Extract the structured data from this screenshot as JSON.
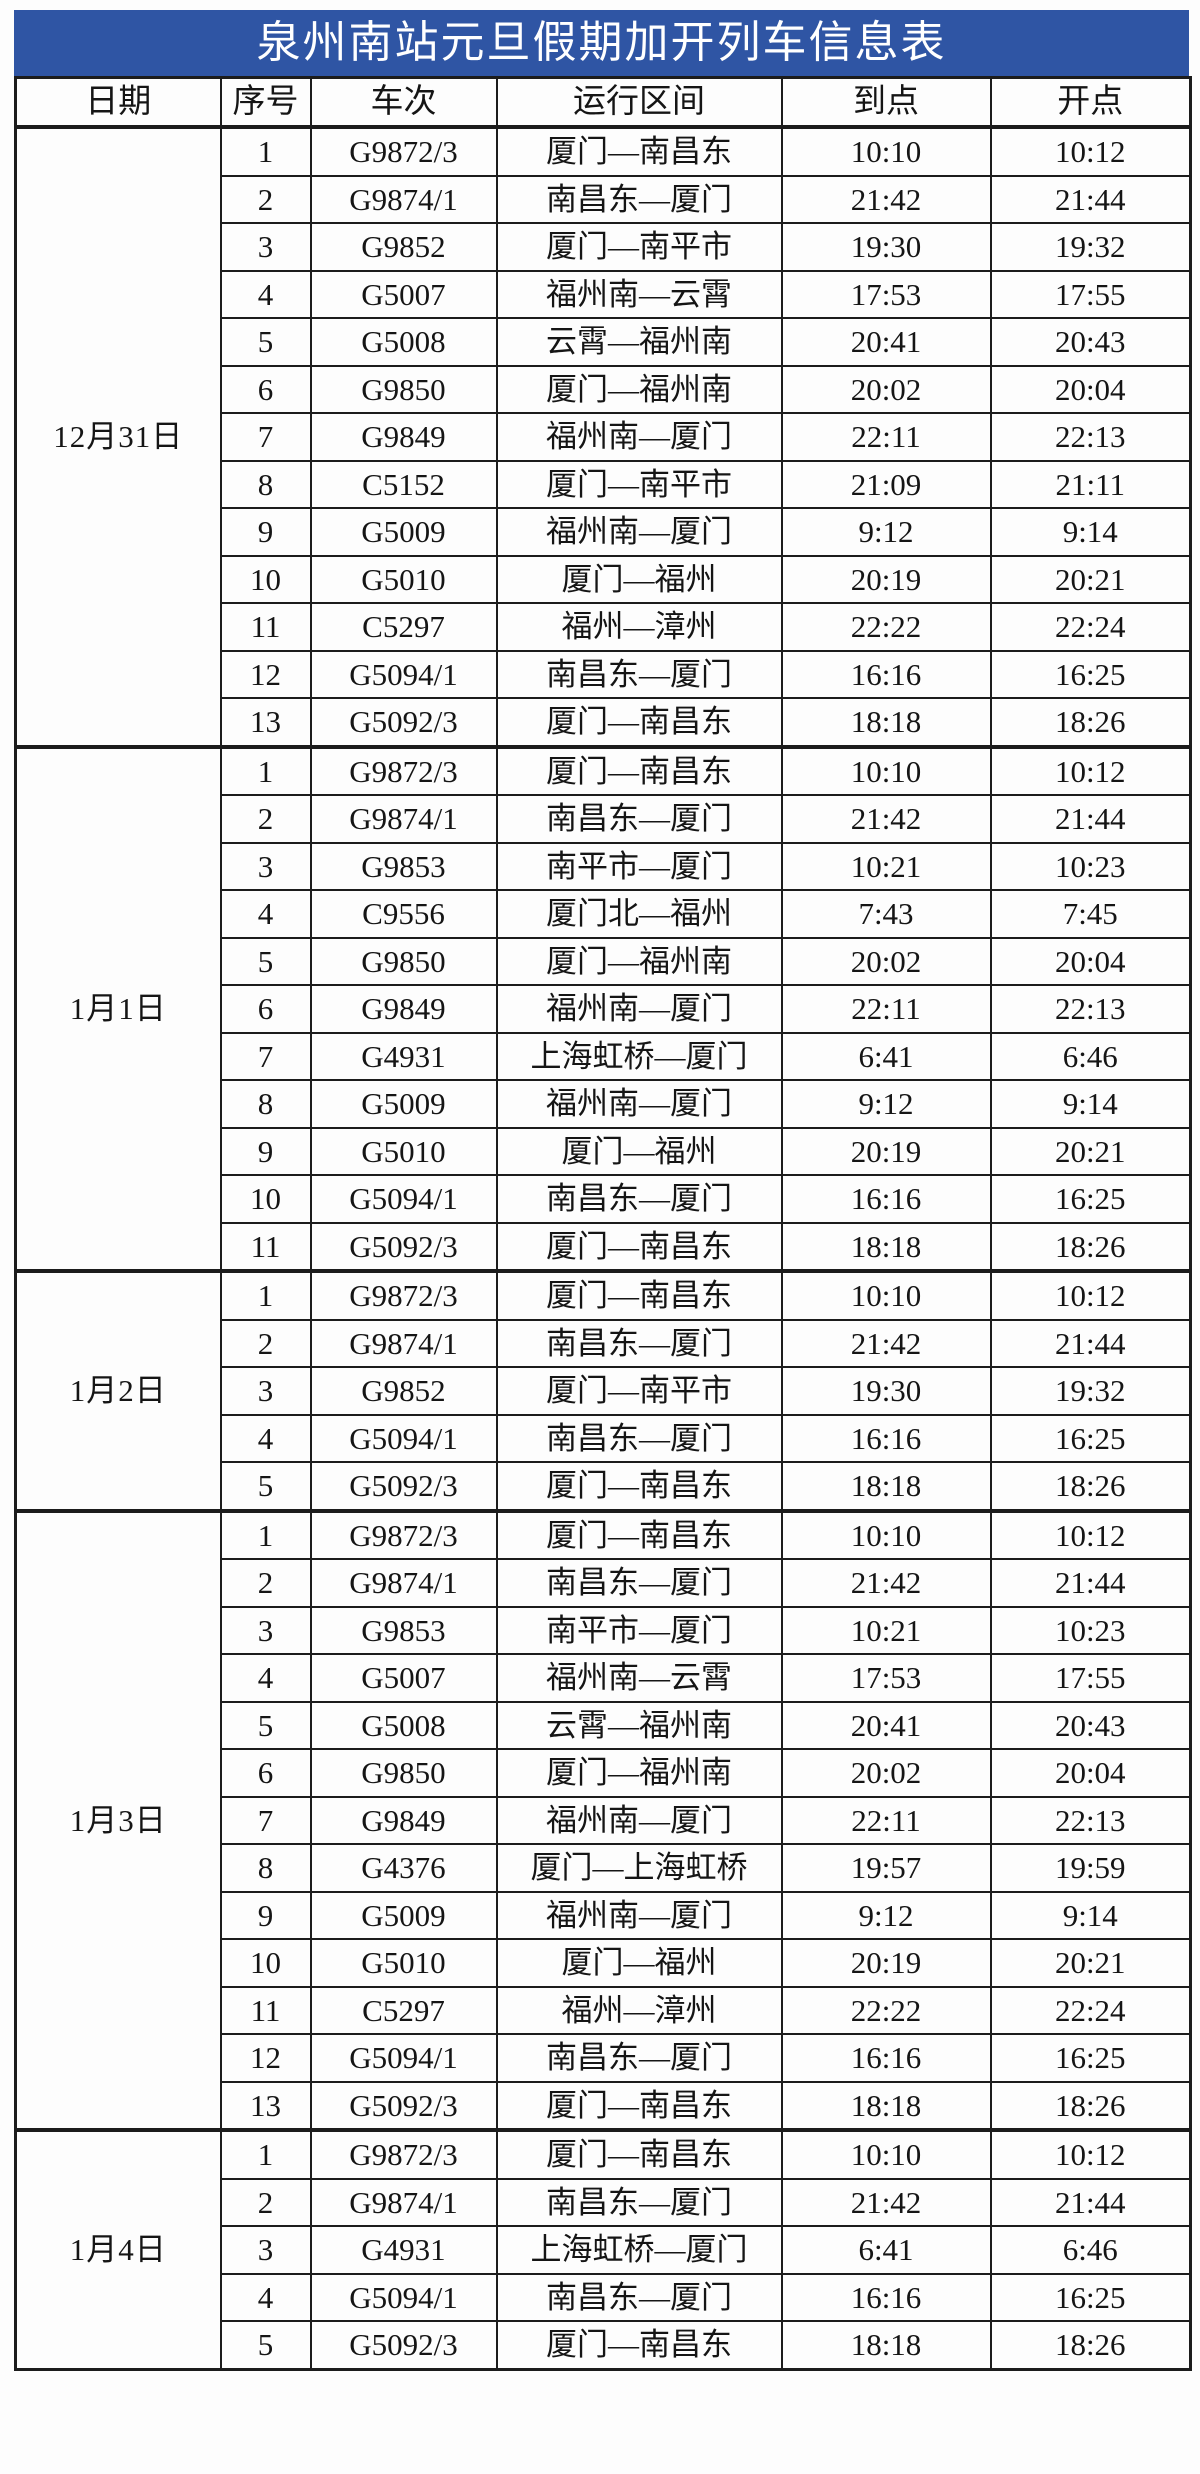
{
  "title": "泉州南站元旦假期加开列车信息表",
  "colors": {
    "title_bg": "#2f55a4",
    "title_text": "#ffffff",
    "border": "#1c1c1c",
    "table_bg": "#fdfdfd",
    "text": "#151515"
  },
  "columns": [
    "日期",
    "序号",
    "车次",
    "运行区间",
    "到点",
    "开点"
  ],
  "groups": [
    {
      "date": "12月31日",
      "rows": [
        [
          "1",
          "G9872/3",
          "厦门—南昌东",
          "10:10",
          "10:12"
        ],
        [
          "2",
          "G9874/1",
          "南昌东—厦门",
          "21:42",
          "21:44"
        ],
        [
          "3",
          "G9852",
          "厦门—南平市",
          "19:30",
          "19:32"
        ],
        [
          "4",
          "G5007",
          "福州南—云霄",
          "17:53",
          "17:55"
        ],
        [
          "5",
          "G5008",
          "云霄—福州南",
          "20:41",
          "20:43"
        ],
        [
          "6",
          "G9850",
          "厦门—福州南",
          "20:02",
          "20:04"
        ],
        [
          "7",
          "G9849",
          "福州南—厦门",
          "22:11",
          "22:13"
        ],
        [
          "8",
          "C5152",
          "厦门—南平市",
          "21:09",
          "21:11"
        ],
        [
          "9",
          "G5009",
          "福州南—厦门",
          "9:12",
          "9:14"
        ],
        [
          "10",
          "G5010",
          "厦门—福州",
          "20:19",
          "20:21"
        ],
        [
          "11",
          "C5297",
          "福州—漳州",
          "22:22",
          "22:24"
        ],
        [
          "12",
          "G5094/1",
          "南昌东—厦门",
          "16:16",
          "16:25"
        ],
        [
          "13",
          "G5092/3",
          "厦门—南昌东",
          "18:18",
          "18:26"
        ]
      ]
    },
    {
      "date": "1月1日",
      "rows": [
        [
          "1",
          "G9872/3",
          "厦门—南昌东",
          "10:10",
          "10:12"
        ],
        [
          "2",
          "G9874/1",
          "南昌东—厦门",
          "21:42",
          "21:44"
        ],
        [
          "3",
          "G9853",
          "南平市—厦门",
          "10:21",
          "10:23"
        ],
        [
          "4",
          "C9556",
          "厦门北—福州",
          "7:43",
          "7:45"
        ],
        [
          "5",
          "G9850",
          "厦门—福州南",
          "20:02",
          "20:04"
        ],
        [
          "6",
          "G9849",
          "福州南—厦门",
          "22:11",
          "22:13"
        ],
        [
          "7",
          "G4931",
          "上海虹桥—厦门",
          "6:41",
          "6:46"
        ],
        [
          "8",
          "G5009",
          "福州南—厦门",
          "9:12",
          "9:14"
        ],
        [
          "9",
          "G5010",
          "厦门—福州",
          "20:19",
          "20:21"
        ],
        [
          "10",
          "G5094/1",
          "南昌东—厦门",
          "16:16",
          "16:25"
        ],
        [
          "11",
          "G5092/3",
          "厦门—南昌东",
          "18:18",
          "18:26"
        ]
      ]
    },
    {
      "date": "1月2日",
      "rows": [
        [
          "1",
          "G9872/3",
          "厦门—南昌东",
          "10:10",
          "10:12"
        ],
        [
          "2",
          "G9874/1",
          "南昌东—厦门",
          "21:42",
          "21:44"
        ],
        [
          "3",
          "G9852",
          "厦门—南平市",
          "19:30",
          "19:32"
        ],
        [
          "4",
          "G5094/1",
          "南昌东—厦门",
          "16:16",
          "16:25"
        ],
        [
          "5",
          "G5092/3",
          "厦门—南昌东",
          "18:18",
          "18:26"
        ]
      ]
    },
    {
      "date": "1月3日",
      "rows": [
        [
          "1",
          "G9872/3",
          "厦门—南昌东",
          "10:10",
          "10:12"
        ],
        [
          "2",
          "G9874/1",
          "南昌东—厦门",
          "21:42",
          "21:44"
        ],
        [
          "3",
          "G9853",
          "南平市—厦门",
          "10:21",
          "10:23"
        ],
        [
          "4",
          "G5007",
          "福州南—云霄",
          "17:53",
          "17:55"
        ],
        [
          "5",
          "G5008",
          "云霄—福州南",
          "20:41",
          "20:43"
        ],
        [
          "6",
          "G9850",
          "厦门—福州南",
          "20:02",
          "20:04"
        ],
        [
          "7",
          "G9849",
          "福州南—厦门",
          "22:11",
          "22:13"
        ],
        [
          "8",
          "G4376",
          "厦门—上海虹桥",
          "19:57",
          "19:59"
        ],
        [
          "9",
          "G5009",
          "福州南—厦门",
          "9:12",
          "9:14"
        ],
        [
          "10",
          "G5010",
          "厦门—福州",
          "20:19",
          "20:21"
        ],
        [
          "11",
          "C5297",
          "福州—漳州",
          "22:22",
          "22:24"
        ],
        [
          "12",
          "G5094/1",
          "南昌东—厦门",
          "16:16",
          "16:25"
        ],
        [
          "13",
          "G5092/3",
          "厦门—南昌东",
          "18:18",
          "18:26"
        ]
      ]
    },
    {
      "date": "1月4日",
      "rows": [
        [
          "1",
          "G9872/3",
          "厦门—南昌东",
          "10:10",
          "10:12"
        ],
        [
          "2",
          "G9874/1",
          "南昌东—厦门",
          "21:42",
          "21:44"
        ],
        [
          "3",
          "G4931",
          "上海虹桥—厦门",
          "6:41",
          "6:46"
        ],
        [
          "4",
          "G5094/1",
          "南昌东—厦门",
          "16:16",
          "16:25"
        ],
        [
          "5",
          "G5092/3",
          "厦门—南昌东",
          "18:18",
          "18:26"
        ]
      ]
    }
  ]
}
